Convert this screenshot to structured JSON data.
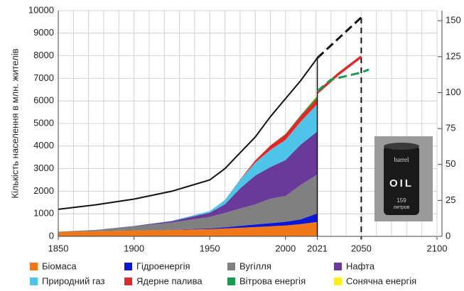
{
  "chart_data": {
    "type": "stacked-area",
    "y_label": "Кількість населення в  млн. жителів",
    "xlim": [
      1850,
      2100
    ],
    "xticks": [
      1850,
      1900,
      1950,
      2000,
      2021,
      2050,
      2100
    ],
    "ylim": [
      0,
      10000
    ],
    "yticks": [
      0,
      1000,
      2000,
      3000,
      4000,
      5000,
      6000,
      7000,
      8000,
      9000,
      10000
    ],
    "y2lim": [
      0,
      157
    ],
    "y2ticks": [
      0,
      25,
      50,
      75,
      100,
      125,
      150
    ],
    "grid": true,
    "x": [
      1850,
      1875,
      1900,
      1925,
      1950,
      1960,
      1970,
      1980,
      1990,
      2000,
      2010,
      2021
    ],
    "series": [
      {
        "name": "Біомаса",
        "color": "#f07818",
        "axis": "y2",
        "values": [
          3,
          3.5,
          4,
          4.5,
          5,
          5.5,
          6,
          6.5,
          7,
          7.5,
          8.5,
          10
        ]
      },
      {
        "name": "Гідроенергія",
        "color": "#0a17d6",
        "axis": "y2",
        "values": [
          0,
          0,
          0,
          0.1,
          0.5,
          0.8,
          1.3,
          1.8,
          2.2,
          2.6,
          3.3,
          6
        ]
      },
      {
        "name": "Вугілля",
        "color": "#808080",
        "axis": "y2",
        "values": [
          0.3,
          1,
          3,
          5,
          8,
          10,
          12,
          14,
          17,
          18,
          24,
          27
        ]
      },
      {
        "name": "Нафта",
        "color": "#6a3a9a",
        "axis": "y2",
        "values": [
          0,
          0,
          0.2,
          1,
          3,
          6,
          14,
          20,
          22,
          25,
          28,
          30
        ]
      },
      {
        "name": "Природний газ",
        "color": "#4ec5e8",
        "axis": "y2",
        "values": [
          0,
          0,
          0,
          0.2,
          1,
          3,
          6,
          9,
          12,
          14,
          16,
          19
        ]
      },
      {
        "name": "Ядерне палива",
        "color": "#e02828",
        "axis": "y2",
        "values": [
          0,
          0,
          0,
          0,
          0,
          0,
          0.2,
          1.5,
          3,
          4,
          4,
          4
        ]
      },
      {
        "name": "Вітрова енергія",
        "color": "#1a9a50",
        "axis": "y2",
        "values": [
          0,
          0,
          0,
          0,
          0,
          0,
          0,
          0,
          0,
          0.1,
          0.5,
          1.5
        ]
      },
      {
        "name": "Сонячна енергія",
        "color": "#ffee20",
        "axis": "y2",
        "values": [
          0,
          0,
          0,
          0,
          0,
          0,
          0,
          0,
          0,
          0,
          0.1,
          1
        ]
      }
    ],
    "population": {
      "color": "#111111",
      "values": [
        1200,
        1400,
        1650,
        2000,
        2500,
        3000,
        3700,
        4400,
        5300,
        6100,
        6900,
        7900
      ]
    },
    "projections": [
      {
        "color": "#111111",
        "axis": "y",
        "dashed": true,
        "x": [
          2021,
          2050
        ],
        "values": [
          7900,
          9700
        ]
      },
      {
        "color": "#e02828",
        "axis": "y2",
        "dashed": false,
        "x": [
          2021,
          2035,
          2050
        ],
        "values": [
          100,
          113,
          125
        ]
      },
      {
        "color": "#1a9a50",
        "axis": "y2",
        "dashed": true,
        "x": [
          2021,
          2030,
          2050,
          2055
        ],
        "values": [
          101,
          109,
          114,
          116
        ]
      }
    ],
    "barrel": {
      "brand": "barrel",
      "label": "OIL",
      "volume": "159",
      "unit": "литров"
    }
  }
}
